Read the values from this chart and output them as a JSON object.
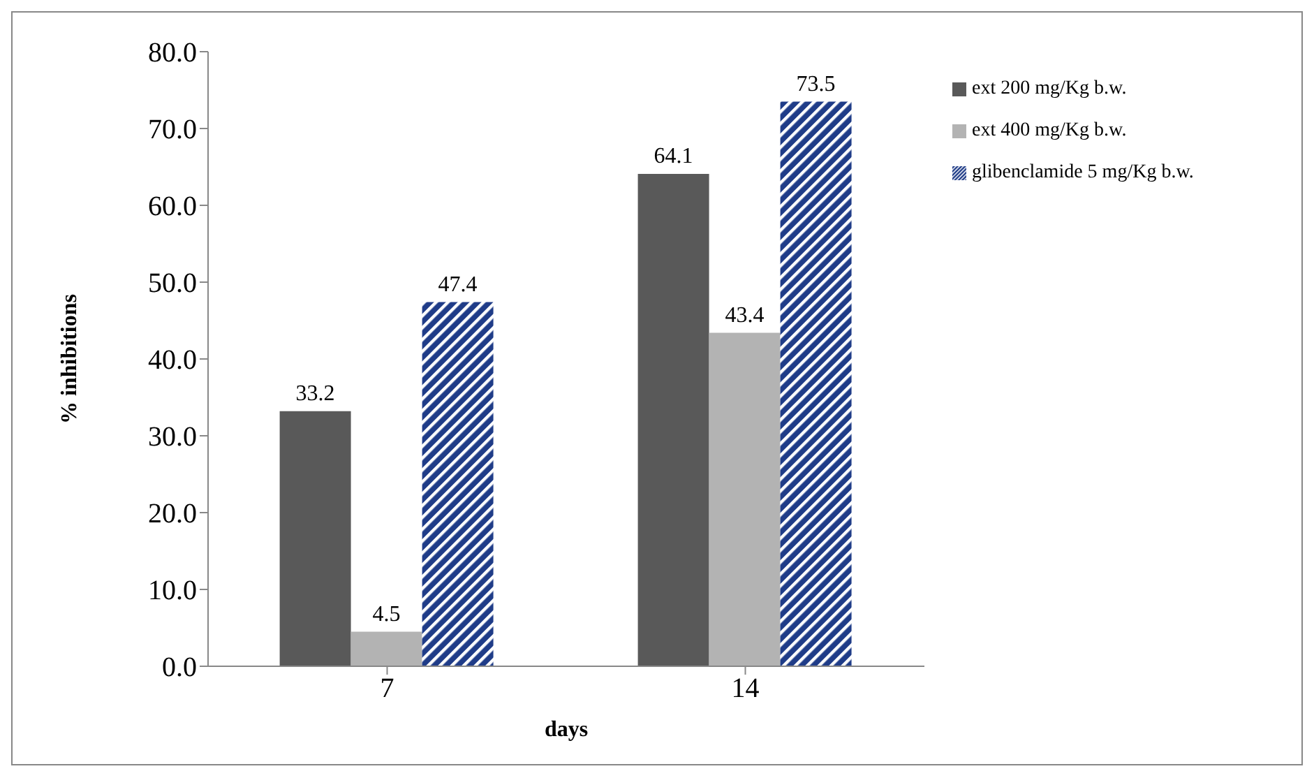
{
  "chart_data": {
    "type": "bar",
    "categories": [
      "7",
      "14"
    ],
    "xlabel": "days",
    "ylabel": "% inhibitions",
    "series": [
      {
        "name": "ext 200 mg/Kg b.w.",
        "color": "#595959",
        "values": [
          33.2,
          64.1
        ]
      },
      {
        "name": "ext 400 mg/Kg b.w.",
        "color": "#b3b3b3",
        "values": [
          4.5,
          43.4
        ]
      },
      {
        "name": "glibenclamide 5 mg/Kg b.w.",
        "color": "#1f3c88",
        "values": [
          47.4,
          73.5
        ]
      }
    ],
    "ylim": [
      0,
      80
    ],
    "yticks": [
      {
        "value": 0,
        "label": "0.0"
      },
      {
        "value": 10,
        "label": "10.0"
      },
      {
        "value": 20,
        "label": "20.0"
      },
      {
        "value": 30,
        "label": "30.0"
      },
      {
        "value": 40,
        "label": "40.0"
      },
      {
        "value": 50,
        "label": "50.0"
      },
      {
        "value": 60,
        "label": "60.0"
      },
      {
        "value": 70,
        "label": "70.0"
      },
      {
        "value": 80,
        "label": "80.0"
      }
    ],
    "grid": false,
    "legend": "top right",
    "data_labels": true
  }
}
